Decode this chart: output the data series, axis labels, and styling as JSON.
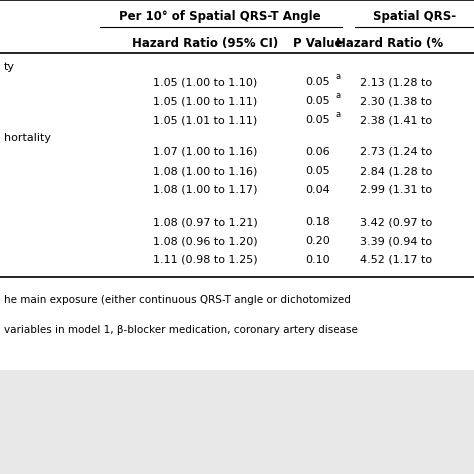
{
  "col_header1": "Per 10° of Spatial QRS-T Angle",
  "col_header2": "Spatial QRS-",
  "subheader1": "Hazard Ratio (95% CI)",
  "subheader2": "P Value",
  "subheader3": "Hazard Ratio (%",
  "section1_label": "ty",
  "section2_label": "hortality",
  "rows": [
    {
      "hr": "1.05 (1.00 to 1.10)",
      "pval": "0.05",
      "pval_sup": "a",
      "hr2": "2.13 (1.28 to",
      "section": 1
    },
    {
      "hr": "1.05 (1.00 to 1.11)",
      "pval": "0.05",
      "pval_sup": "a",
      "hr2": "2.30 (1.38 to",
      "section": 1
    },
    {
      "hr": "1.05 (1.01 to 1.11)",
      "pval": "0.05",
      "pval_sup": "a",
      "hr2": "2.38 (1.41 to",
      "section": 1
    },
    {
      "hr": "1.07 (1.00 to 1.16)",
      "pval": "0.06",
      "pval_sup": "",
      "hr2": "2.73 (1.24 to",
      "section": 2
    },
    {
      "hr": "1.08 (1.00 to 1.16)",
      "pval": "0.05",
      "pval_sup": "",
      "hr2": "2.84 (1.28 to",
      "section": 2
    },
    {
      "hr": "1.08 (1.00 to 1.17)",
      "pval": "0.04",
      "pval_sup": "",
      "hr2": "2.99 (1.31 to",
      "section": 2
    },
    {
      "hr": "1.08 (0.97 to 1.21)",
      "pval": "0.18",
      "pval_sup": "",
      "hr2": "3.42 (0.97 to",
      "section": 3
    },
    {
      "hr": "1.08 (0.96 to 1.20)",
      "pval": "0.20",
      "pval_sup": "",
      "hr2": "3.39 (0.94 to",
      "section": 3
    },
    {
      "hr": "1.11 (0.98 to 1.25)",
      "pval": "0.10",
      "pval_sup": "",
      "hr2": "4.52 (1.17 to",
      "section": 3
    }
  ],
  "footer1": "he main exposure (either continuous QRS-T angle or dichotomized",
  "footer2": "variables in model 1, β-blocker medication, coronary artery disease",
  "bg_color": "#e8e8e8",
  "white_bg": "#ffffff"
}
